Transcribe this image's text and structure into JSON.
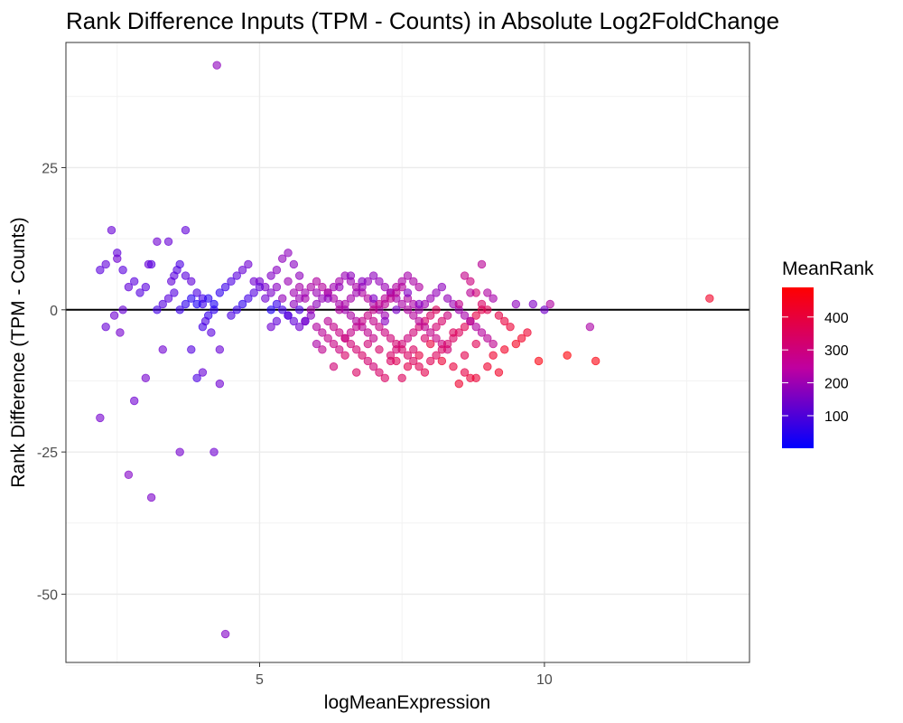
{
  "chart_data": {
    "type": "scatter",
    "title": "Rank Difference Inputs (TPM - Counts) in Absolute Log2FoldChange",
    "xlabel": "logMeanExpression",
    "ylabel": "Rank Difference (TPM - Counts)",
    "xlim": [
      1.6,
      13.6
    ],
    "ylim": [
      -62,
      47
    ],
    "x_ticks": [
      5,
      10
    ],
    "x_tick_labels": [
      "5",
      "10"
    ],
    "y_ticks": [
      25,
      0,
      -25,
      -50
    ],
    "y_tick_labels": [
      "25",
      "0",
      "-25",
      "-50"
    ],
    "grid": true,
    "hline_y": 0,
    "color_legend": {
      "title": "MeanRank",
      "ticks": [
        100,
        200,
        300,
        400
      ],
      "tick_labels": [
        "100",
        "200",
        "300",
        "400"
      ],
      "range": [
        1,
        490
      ],
      "low_color": "#0000ff",
      "high_color": "#ff0000",
      "placement": "right"
    },
    "point_alpha": 0.6,
    "points": [
      [
        2.2,
        7,
        120
      ],
      [
        2.3,
        8,
        130
      ],
      [
        2.4,
        14,
        140
      ],
      [
        2.5,
        10,
        130
      ],
      [
        2.5,
        9,
        150
      ],
      [
        2.6,
        7,
        120
      ],
      [
        2.3,
        -3,
        140
      ],
      [
        2.45,
        -1,
        150
      ],
      [
        2.55,
        -4,
        160
      ],
      [
        2.6,
        0,
        140
      ],
      [
        2.7,
        4,
        130
      ],
      [
        2.8,
        5,
        120
      ],
      [
        2.9,
        3,
        110
      ],
      [
        3.0,
        4,
        120
      ],
      [
        3.05,
        8,
        140
      ],
      [
        3.1,
        8,
        120
      ],
      [
        3.2,
        12,
        150
      ],
      [
        3.4,
        12,
        140
      ],
      [
        3.45,
        5,
        130
      ],
      [
        3.5,
        6,
        120
      ],
      [
        3.55,
        7,
        110
      ],
      [
        3.6,
        8,
        100
      ],
      [
        3.7,
        6,
        120
      ],
      [
        3.8,
        5,
        130
      ],
      [
        3.9,
        3,
        100
      ],
      [
        4.0,
        2,
        90
      ],
      [
        2.2,
        -19,
        160
      ],
      [
        2.7,
        -29,
        180
      ],
      [
        2.8,
        -16,
        150
      ],
      [
        3.0,
        -12,
        160
      ],
      [
        3.1,
        -33,
        170
      ],
      [
        3.3,
        -7,
        150
      ],
      [
        3.6,
        -25,
        160
      ],
      [
        4.0,
        -11,
        140
      ],
      [
        4.2,
        -25,
        150
      ],
      [
        4.3,
        -13,
        150
      ],
      [
        4.4,
        -57,
        180
      ],
      [
        4.25,
        43,
        200
      ],
      [
        3.7,
        14,
        130
      ],
      [
        3.8,
        -7,
        110
      ],
      [
        3.9,
        -12,
        100
      ],
      [
        4.0,
        -3,
        90
      ],
      [
        4.1,
        -1,
        70
      ],
      [
        4.2,
        0,
        60
      ],
      [
        4.0,
        1,
        80
      ],
      [
        4.1,
        2,
        50
      ],
      [
        4.2,
        1,
        40
      ],
      [
        4.3,
        3,
        60
      ],
      [
        4.4,
        4,
        80
      ],
      [
        4.5,
        5,
        100
      ],
      [
        4.6,
        6,
        120
      ],
      [
        4.7,
        7,
        140
      ],
      [
        4.8,
        8,
        150
      ],
      [
        4.9,
        5,
        150
      ],
      [
        5.0,
        5,
        160
      ],
      [
        5.1,
        4,
        170
      ],
      [
        5.2,
        6,
        180
      ],
      [
        5.3,
        7,
        190
      ],
      [
        5.4,
        9,
        200
      ],
      [
        5.5,
        10,
        200
      ],
      [
        5.6,
        8,
        190
      ],
      [
        5.7,
        6,
        200
      ],
      [
        3.2,
        0,
        90
      ],
      [
        3.3,
        1,
        110
      ],
      [
        3.4,
        2,
        120
      ],
      [
        3.5,
        3,
        110
      ],
      [
        3.6,
        0,
        80
      ],
      [
        3.7,
        1,
        60
      ],
      [
        3.8,
        2,
        50
      ],
      [
        3.9,
        1,
        40
      ],
      [
        4.05,
        -2,
        100
      ],
      [
        4.15,
        -4,
        120
      ],
      [
        4.3,
        -7,
        140
      ],
      [
        4.5,
        -1,
        100
      ],
      [
        4.6,
        0,
        80
      ],
      [
        4.7,
        1,
        60
      ],
      [
        4.8,
        2,
        90
      ],
      [
        4.9,
        3,
        110
      ],
      [
        5.0,
        4,
        130
      ],
      [
        5.1,
        2,
        150
      ],
      [
        5.2,
        3,
        170
      ],
      [
        5.3,
        4,
        190
      ],
      [
        5.4,
        2,
        210
      ],
      [
        5.5,
        5,
        220
      ],
      [
        5.6,
        3,
        230
      ],
      [
        5.7,
        4,
        240
      ],
      [
        5.8,
        2,
        240
      ],
      [
        5.9,
        0,
        240
      ],
      [
        5.2,
        0,
        40
      ],
      [
        5.3,
        1,
        70
      ],
      [
        5.4,
        0,
        90
      ],
      [
        5.5,
        -1,
        110
      ],
      [
        5.6,
        -2,
        130
      ],
      [
        5.7,
        -3,
        150
      ],
      [
        5.8,
        -2,
        170
      ],
      [
        5.9,
        -1,
        190
      ],
      [
        6.0,
        1,
        200
      ],
      [
        6.1,
        2,
        210
      ],
      [
        6.2,
        3,
        220
      ],
      [
        6.3,
        4,
        230
      ],
      [
        6.4,
        5,
        240
      ],
      [
        6.5,
        6,
        220
      ],
      [
        6.6,
        5,
        230
      ],
      [
        6.7,
        4,
        250
      ],
      [
        6.8,
        3,
        260
      ],
      [
        6.9,
        2,
        270
      ],
      [
        7.0,
        1,
        250
      ],
      [
        7.1,
        0,
        240
      ],
      [
        7.2,
        -1,
        230
      ],
      [
        5.6,
        1,
        200
      ],
      [
        5.7,
        2,
        220
      ],
      [
        5.8,
        3,
        230
      ],
      [
        5.9,
        4,
        250
      ],
      [
        6.0,
        5,
        260
      ],
      [
        6.1,
        4,
        270
      ],
      [
        6.2,
        3,
        260
      ],
      [
        6.3,
        2,
        250
      ],
      [
        6.4,
        1,
        240
      ],
      [
        6.5,
        0,
        230
      ],
      [
        6.6,
        -1,
        250
      ],
      [
        6.7,
        -2,
        260
      ],
      [
        6.8,
        -3,
        280
      ],
      [
        6.9,
        -4,
        290
      ],
      [
        7.0,
        -5,
        300
      ],
      [
        6.0,
        -3,
        260
      ],
      [
        6.1,
        -4,
        280
      ],
      [
        6.2,
        -5,
        300
      ],
      [
        6.3,
        -6,
        310
      ],
      [
        6.4,
        -7,
        320
      ],
      [
        6.5,
        -5,
        310
      ],
      [
        6.6,
        -4,
        300
      ],
      [
        6.7,
        -3,
        290
      ],
      [
        6.8,
        -2,
        300
      ],
      [
        6.9,
        -1,
        310
      ],
      [
        7.0,
        0,
        300
      ],
      [
        7.1,
        1,
        290
      ],
      [
        7.2,
        2,
        280
      ],
      [
        7.3,
        3,
        270
      ],
      [
        7.4,
        4,
        260
      ],
      [
        7.5,
        5,
        250
      ],
      [
        7.6,
        6,
        240
      ],
      [
        7.7,
        5,
        250
      ],
      [
        7.8,
        4,
        260
      ],
      [
        6.2,
        -2,
        280
      ],
      [
        6.3,
        -3,
        300
      ],
      [
        6.4,
        -4,
        310
      ],
      [
        6.5,
        -5,
        320
      ],
      [
        6.6,
        -6,
        330
      ],
      [
        6.7,
        -7,
        340
      ],
      [
        6.8,
        -8,
        350
      ],
      [
        6.9,
        -9,
        340
      ],
      [
        7.0,
        -10,
        330
      ],
      [
        7.1,
        -11,
        350
      ],
      [
        7.2,
        -12,
        360
      ],
      [
        7.3,
        -8,
        350
      ],
      [
        7.4,
        -7,
        340
      ],
      [
        7.5,
        -6,
        330
      ],
      [
        7.6,
        -5,
        320
      ],
      [
        7.7,
        -4,
        330
      ],
      [
        7.8,
        -3,
        340
      ],
      [
        7.9,
        -2,
        350
      ],
      [
        8.0,
        -1,
        360
      ],
      [
        8.1,
        0,
        370
      ],
      [
        6.4,
        0,
        260
      ],
      [
        6.5,
        1,
        250
      ],
      [
        6.6,
        2,
        240
      ],
      [
        6.7,
        3,
        230
      ],
      [
        6.8,
        4,
        220
      ],
      [
        6.9,
        5,
        210
      ],
      [
        7.0,
        6,
        200
      ],
      [
        7.1,
        5,
        210
      ],
      [
        7.2,
        4,
        220
      ],
      [
        7.3,
        3,
        230
      ],
      [
        7.4,
        2,
        240
      ],
      [
        7.5,
        1,
        250
      ],
      [
        7.6,
        0,
        260
      ],
      [
        7.7,
        -1,
        270
      ],
      [
        7.8,
        -2,
        280
      ],
      [
        7.9,
        -3,
        290
      ],
      [
        8.0,
        -4,
        300
      ],
      [
        8.1,
        -5,
        310
      ],
      [
        8.2,
        -6,
        320
      ],
      [
        8.3,
        -7,
        330
      ],
      [
        7.0,
        -2,
        300
      ],
      [
        7.1,
        -3,
        310
      ],
      [
        7.2,
        -4,
        320
      ],
      [
        7.3,
        -5,
        330
      ],
      [
        7.4,
        -6,
        340
      ],
      [
        7.5,
        -7,
        350
      ],
      [
        7.6,
        -8,
        360
      ],
      [
        7.7,
        -9,
        370
      ],
      [
        7.8,
        -10,
        380
      ],
      [
        7.9,
        -11,
        390
      ],
      [
        8.0,
        -9,
        380
      ],
      [
        8.1,
        -8,
        370
      ],
      [
        8.2,
        -7,
        360
      ],
      [
        8.3,
        -6,
        350
      ],
      [
        8.4,
        -5,
        360
      ],
      [
        8.5,
        -4,
        370
      ],
      [
        8.6,
        -3,
        380
      ],
      [
        8.7,
        -2,
        390
      ],
      [
        8.8,
        -1,
        400
      ],
      [
        8.9,
        0,
        390
      ],
      [
        7.2,
        1,
        280
      ],
      [
        7.3,
        2,
        290
      ],
      [
        7.4,
        3,
        280
      ],
      [
        7.5,
        4,
        270
      ],
      [
        7.6,
        2,
        260
      ],
      [
        7.7,
        1,
        250
      ],
      [
        7.8,
        0,
        240
      ],
      [
        7.9,
        1,
        230
      ],
      [
        8.0,
        2,
        220
      ],
      [
        8.1,
        3,
        210
      ],
      [
        8.2,
        4,
        200
      ],
      [
        8.3,
        2,
        210
      ],
      [
        8.4,
        1,
        220
      ],
      [
        8.5,
        0,
        230
      ],
      [
        8.6,
        -1,
        240
      ],
      [
        8.7,
        -2,
        250
      ],
      [
        8.8,
        -3,
        260
      ],
      [
        8.9,
        -4,
        270
      ],
      [
        9.0,
        -5,
        280
      ],
      [
        9.1,
        -6,
        290
      ],
      [
        7.4,
        -9,
        380
      ],
      [
        7.6,
        -10,
        390
      ],
      [
        7.8,
        -8,
        400
      ],
      [
        8.0,
        -6,
        410
      ],
      [
        8.2,
        -9,
        420
      ],
      [
        8.4,
        -10,
        410
      ],
      [
        8.6,
        -11,
        400
      ],
      [
        8.8,
        -12,
        420
      ],
      [
        9.0,
        -10,
        430
      ],
      [
        9.2,
        -11,
        440
      ],
      [
        8.5,
        -13,
        430
      ],
      [
        8.7,
        -12,
        420
      ],
      [
        9.1,
        -8,
        430
      ],
      [
        9.3,
        -7,
        440
      ],
      [
        9.5,
        -6,
        450
      ],
      [
        9.6,
        -5,
        440
      ],
      [
        9.7,
        -4,
        430
      ],
      [
        9.4,
        -3,
        420
      ],
      [
        9.3,
        -2,
        410
      ],
      [
        9.2,
        -1,
        400
      ],
      [
        9.0,
        0,
        380
      ],
      [
        8.9,
        1,
        360
      ],
      [
        8.8,
        3,
        340
      ],
      [
        8.7,
        5,
        320
      ],
      [
        8.6,
        6,
        300
      ],
      [
        8.9,
        8,
        280
      ],
      [
        9.0,
        3,
        260
      ],
      [
        9.1,
        2,
        240
      ],
      [
        9.5,
        1,
        200
      ],
      [
        9.8,
        1,
        180
      ],
      [
        10.0,
        0,
        160
      ],
      [
        10.1,
        1,
        260
      ],
      [
        9.9,
        -9,
        470
      ],
      [
        10.4,
        -8,
        480
      ],
      [
        10.9,
        -9,
        470
      ],
      [
        10.8,
        -3,
        250
      ],
      [
        12.9,
        2,
        440
      ],
      [
        5.2,
        -3,
        150
      ],
      [
        5.3,
        -2,
        130
      ],
      [
        5.5,
        -1,
        110
      ],
      [
        5.7,
        0,
        100
      ],
      [
        5.8,
        -2,
        150
      ],
      [
        6.0,
        -6,
        250
      ],
      [
        6.1,
        -7,
        290
      ],
      [
        6.3,
        -10,
        330
      ],
      [
        6.5,
        -8,
        350
      ],
      [
        6.7,
        -11,
        360
      ],
      [
        6.9,
        -6,
        330
      ],
      [
        7.1,
        -7,
        350
      ],
      [
        7.3,
        -9,
        360
      ],
      [
        7.5,
        -12,
        370
      ],
      [
        7.7,
        -7,
        360
      ],
      [
        7.9,
        -5,
        350
      ],
      [
        8.1,
        -3,
        340
      ],
      [
        8.3,
        -1,
        320
      ],
      [
        8.5,
        1,
        300
      ],
      [
        8.7,
        3,
        280
      ],
      [
        8.8,
        -6,
        380
      ],
      [
        8.6,
        -8,
        390
      ],
      [
        8.4,
        -4,
        370
      ],
      [
        8.2,
        -2,
        350
      ],
      [
        6.0,
        3,
        220
      ],
      [
        6.2,
        2,
        200
      ],
      [
        6.4,
        4,
        210
      ],
      [
        6.6,
        6,
        200
      ],
      [
        6.8,
        5,
        190
      ],
      [
        7.0,
        2,
        180
      ],
      [
        7.2,
        -2,
        190
      ],
      [
        7.4,
        0,
        170
      ],
      [
        7.6,
        3,
        180
      ],
      [
        7.8,
        1,
        190
      ]
    ]
  }
}
